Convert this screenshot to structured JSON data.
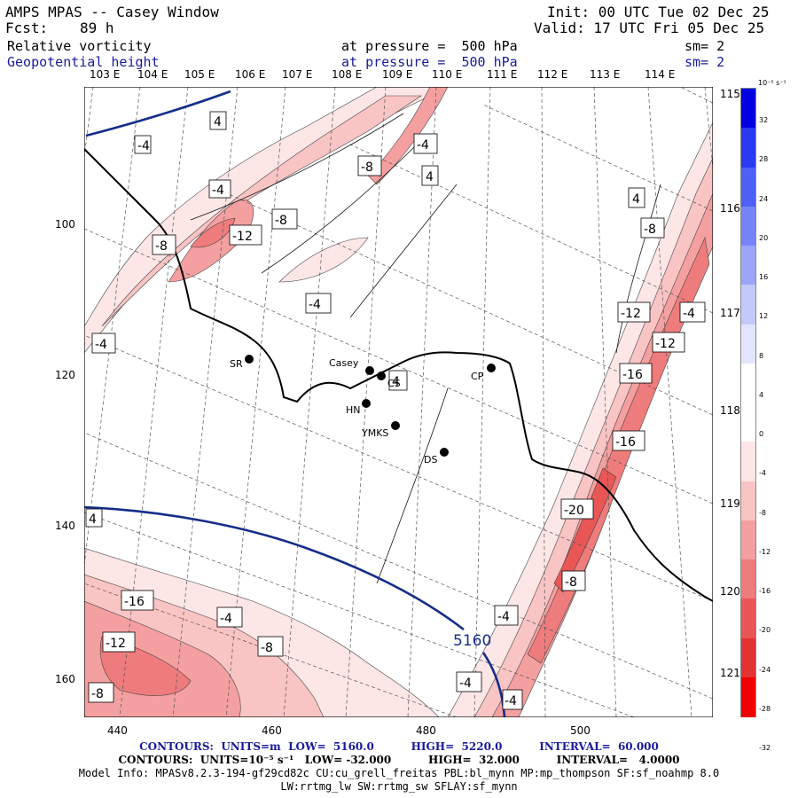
{
  "header": {
    "title": "AMPS MPAS -- Casey Window",
    "fcst_label": "Fcst:",
    "fcst_value": "89 h",
    "init": "Init: 00 UTC Tue 02 Dec 25",
    "valid": "Valid: 17 UTC Fri 05 Dec 25",
    "field1_name": "Relative vorticity",
    "field1_level": "at pressure =  500 hPa",
    "field1_sm": "sm= 2",
    "field2_name": "Geopotential height",
    "field2_level": "at pressure =  500 hPa",
    "field2_sm": "sm= 2"
  },
  "lon_labels": [
    "103 E",
    "104 E",
    "105 E",
    "106 E",
    "107 E",
    "108 E",
    "109 E",
    "110 E",
    "111 E",
    "112 E",
    "113 E",
    "114 E",
    "115 E"
  ],
  "lat_labels_right": [
    "116 E",
    "117 E",
    "118 E",
    "119 E",
    "120 E",
    "121 E"
  ],
  "axis_left": [
    "100",
    "120",
    "140",
    "160"
  ],
  "axis_bottom": [
    "440",
    "460",
    "480",
    "500"
  ],
  "stations": [
    {
      "id": "SR",
      "label": "SR"
    },
    {
      "id": "Casey",
      "label": "Casey"
    },
    {
      "id": "CS",
      "label": "CS"
    },
    {
      "id": "HN",
      "label": "HN"
    },
    {
      "id": "YMKS",
      "label": "YMKS"
    },
    {
      "id": "DS",
      "label": "DS"
    },
    {
      "id": "CP",
      "label": "CP"
    }
  ],
  "contour_labels": [
    "4",
    "-4",
    "-4",
    "-8",
    "4",
    "-4",
    "-12",
    "-8",
    "-8",
    "4",
    "-8",
    "-4",
    "-4",
    "4",
    "-12",
    "-4",
    "-12",
    "-16",
    "-16",
    "-20",
    "-8",
    "-4",
    "-16",
    "-4",
    "-12",
    "-8",
    "-8",
    "-4",
    "4",
    "-4"
  ],
  "height_label": "5160",
  "colorbar": {
    "unit": "10⁻⁵ s⁻¹",
    "ticks": [
      "32",
      "28",
      "24",
      "20",
      "16",
      "12",
      "8",
      "4",
      "0",
      "-4",
      "-8",
      "-12",
      "-16",
      "-20",
      "-24",
      "-28",
      "-32"
    ],
    "colors": [
      "#0000e0",
      "#2a3af0",
      "#4f60f5",
      "#7584f7",
      "#9ba6fa",
      "#c4c9fc",
      "#e3e5fe",
      "#ffffff",
      "#ffffff",
      "#fde6e6",
      "#f9c4c4",
      "#f4a0a0",
      "#ef7c7c",
      "#e95656",
      "#e23232",
      "#f00000"
    ]
  },
  "footer": {
    "line1": "CONTOURS:  UNITS=m  LOW=  5160.0          HIGH=  5220.0          INTERVAL=  60.000",
    "line2": "CONTOURS:  UNITS=10⁻⁵ s⁻¹   LOW= -32.000          HIGH=  32.000          INTERVAL=   4.0000",
    "line3": "Model Info: MPASv8.2.3-194-gf29cd82c CU:cu_grell_freitas PBL:bl_mynn MP:mp_thompson SF:sf_noahmp 8.0",
    "line4": "LW:rrtmg_lw SW:rrtmg_sw SFLAY:sf_mynn"
  }
}
